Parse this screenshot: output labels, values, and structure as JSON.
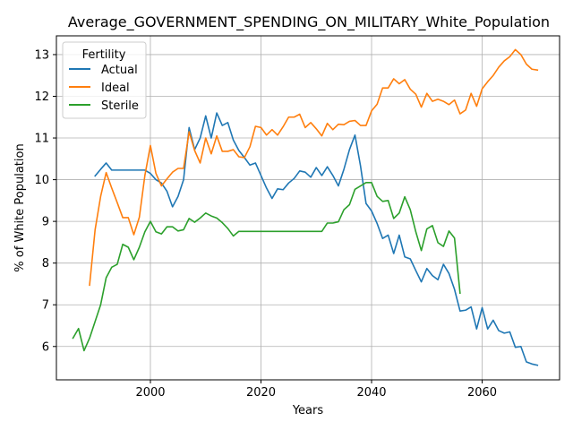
{
  "chart_data": {
    "type": "line",
    "title": "Average_GOVERNMENT_SPENDING_ON_MILITARY_White_Population",
    "xlabel": "Years",
    "ylabel": "% of White Population",
    "xlim": [
      1983,
      2074
    ],
    "ylim": [
      5.2,
      13.45
    ],
    "xticks": [
      2000,
      2020,
      2040,
      2060
    ],
    "yticks": [
      6,
      7,
      8,
      9,
      10,
      11,
      12,
      13
    ],
    "grid": true,
    "legend": {
      "title": "Fertility",
      "position": "top-left"
    },
    "series": [
      {
        "name": "Actual",
        "color": "#1f77b4",
        "x": [
          1990,
          1991,
          1992,
          1993,
          1994,
          1995,
          1996,
          1997,
          1998,
          1999,
          2000,
          2001,
          2002,
          2003,
          2004,
          2005,
          2006,
          2007,
          2008,
          2009,
          2010,
          2011,
          2012,
          2013,
          2014,
          2015,
          2016,
          2017,
          2018,
          2019,
          2020,
          2021,
          2022,
          2023,
          2024,
          2025,
          2026,
          2027,
          2028,
          2029,
          2030,
          2031,
          2032,
          2033,
          2034,
          2035,
          2036,
          2037,
          2038,
          2039,
          2040,
          2041,
          2042,
          2043,
          2044,
          2045,
          2046,
          2047,
          2048,
          2049,
          2050,
          2051,
          2052,
          2053,
          2054,
          2055,
          2056,
          2057,
          2058,
          2059,
          2060,
          2061,
          2062,
          2063,
          2064,
          2065,
          2066,
          2067,
          2068,
          2069,
          2070
        ],
        "values": [
          10.09,
          10.25,
          10.4,
          10.23,
          10.23,
          10.23,
          10.23,
          10.23,
          10.23,
          10.23,
          10.15,
          10.0,
          9.92,
          9.72,
          9.35,
          9.6,
          10.0,
          11.25,
          10.72,
          11.0,
          11.53,
          11.0,
          11.6,
          11.3,
          11.37,
          10.95,
          10.7,
          10.53,
          10.35,
          10.4,
          10.1,
          9.8,
          9.55,
          9.78,
          9.76,
          9.92,
          10.03,
          10.21,
          10.18,
          10.06,
          10.29,
          10.1,
          10.31,
          10.1,
          9.85,
          10.25,
          10.72,
          11.07,
          10.33,
          9.43,
          9.25,
          8.95,
          8.59,
          8.67,
          8.23,
          8.67,
          8.15,
          8.1,
          7.82,
          7.55,
          7.87,
          7.7,
          7.6,
          7.97,
          7.75,
          7.37,
          6.85,
          6.87,
          6.95,
          6.42,
          6.93,
          6.42,
          6.63,
          6.38,
          6.32,
          6.35,
          5.98,
          6.0,
          5.63,
          5.58,
          5.55
        ]
      },
      {
        "name": "Ideal",
        "color": "#ff7f0e",
        "x": [
          1989,
          1990,
          1991,
          1992,
          1993,
          1994,
          1995,
          1996,
          1997,
          1998,
          1999,
          2000,
          2001,
          2002,
          2003,
          2004,
          2005,
          2006,
          2007,
          2008,
          2009,
          2010,
          2011,
          2012,
          2013,
          2014,
          2015,
          2016,
          2017,
          2018,
          2019,
          2020,
          2021,
          2022,
          2023,
          2024,
          2025,
          2026,
          2027,
          2028,
          2029,
          2030,
          2031,
          2032,
          2033,
          2034,
          2035,
          2036,
          2037,
          2038,
          2039,
          2040,
          2041,
          2042,
          2043,
          2044,
          2045,
          2046,
          2047,
          2048,
          2049,
          2050,
          2051,
          2052,
          2053,
          2054,
          2055,
          2056,
          2057,
          2058,
          2059,
          2060,
          2061,
          2062,
          2063,
          2064,
          2065,
          2066,
          2067,
          2068,
          2069,
          2070
        ],
        "values": [
          7.47,
          8.8,
          9.6,
          10.17,
          9.8,
          9.45,
          9.09,
          9.09,
          8.68,
          9.1,
          10.1,
          10.82,
          10.15,
          9.85,
          10.02,
          10.18,
          10.27,
          10.27,
          11.15,
          10.7,
          10.4,
          11.0,
          10.62,
          11.05,
          10.68,
          10.68,
          10.72,
          10.55,
          10.53,
          10.79,
          11.28,
          11.25,
          11.07,
          11.2,
          11.07,
          11.27,
          11.5,
          11.5,
          11.57,
          11.25,
          11.37,
          11.22,
          11.05,
          11.35,
          11.2,
          11.33,
          11.32,
          11.4,
          11.42,
          11.3,
          11.3,
          11.65,
          11.81,
          12.2,
          12.2,
          12.42,
          12.3,
          12.4,
          12.17,
          12.05,
          11.74,
          12.07,
          11.88,
          11.93,
          11.88,
          11.8,
          11.91,
          11.58,
          11.67,
          12.07,
          11.76,
          12.18,
          12.35,
          12.5,
          12.7,
          12.85,
          12.95,
          13.12,
          13.0,
          12.77,
          12.65,
          12.63
        ]
      },
      {
        "name": "Sterile",
        "color": "#2ca02c",
        "x": [
          1986,
          1987,
          1988,
          1989,
          1990,
          1991,
          1992,
          1993,
          1994,
          1995,
          1996,
          1997,
          1998,
          1999,
          2000,
          2001,
          2002,
          2003,
          2004,
          2005,
          2006,
          2007,
          2008,
          2009,
          2010,
          2011,
          2012,
          2013,
          2014,
          2015,
          2016,
          2017,
          2018,
          2019,
          2020,
          2021,
          2022,
          2023,
          2024,
          2025,
          2026,
          2027,
          2028,
          2029,
          2030,
          2031,
          2032,
          2033,
          2034,
          2035,
          2036,
          2037,
          2038,
          2039,
          2040,
          2041,
          2042,
          2043,
          2044,
          2045,
          2046,
          2047,
          2048,
          2049,
          2050,
          2051,
          2052,
          2053,
          2054,
          2055,
          2056
        ],
        "values": [
          6.2,
          6.43,
          5.9,
          6.2,
          6.6,
          7.0,
          7.65,
          7.9,
          7.97,
          8.45,
          8.38,
          8.08,
          8.38,
          8.75,
          9.0,
          8.75,
          8.7,
          8.87,
          8.87,
          8.77,
          8.8,
          9.07,
          8.98,
          9.08,
          9.2,
          9.13,
          9.08,
          8.97,
          8.83,
          8.65,
          8.76,
          8.76,
          8.76,
          8.76,
          8.76,
          8.76,
          8.76,
          8.76,
          8.76,
          8.76,
          8.76,
          8.76,
          8.76,
          8.76,
          8.76,
          8.76,
          8.96,
          8.96,
          8.99,
          9.28,
          9.4,
          9.77,
          9.85,
          9.93,
          9.93,
          9.6,
          9.48,
          9.5,
          9.07,
          9.2,
          9.59,
          9.28,
          8.75,
          8.3,
          8.82,
          8.9,
          8.49,
          8.4,
          8.77,
          8.6,
          7.28
        ]
      }
    ]
  }
}
